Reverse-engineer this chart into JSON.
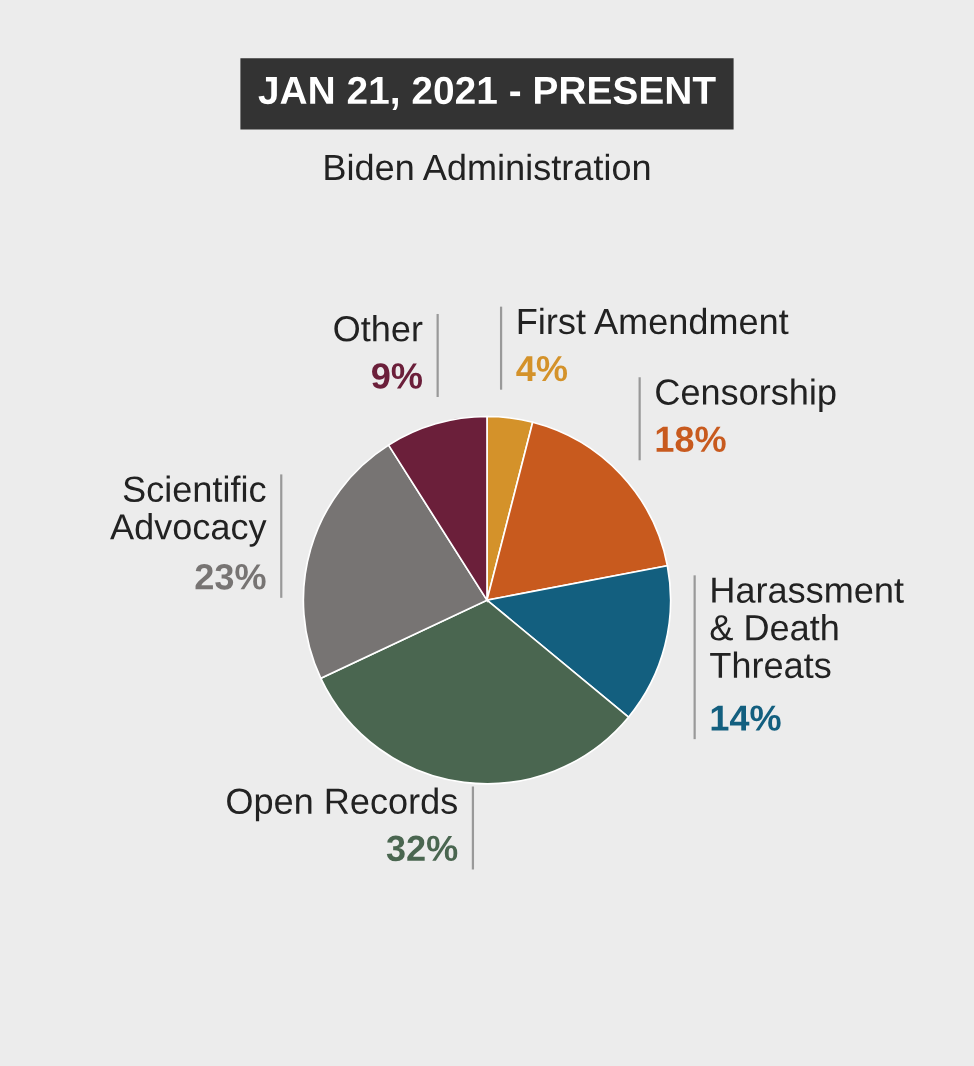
{
  "chart_data": {
    "type": "pie",
    "title": "JAN 21, 2021 - PRESENT",
    "subtitle": "Biden Administration",
    "categories": [
      "First Amendment",
      "Censorship",
      "Harassment\n& Death\nThreats",
      "Open Records",
      "Scientific\nAdvocacy",
      "Other"
    ],
    "values": [
      4,
      18,
      14,
      32,
      23,
      9
    ],
    "value_labels": [
      "4%",
      "18%",
      "14%",
      "32%",
      "23%",
      "9%"
    ],
    "colors": [
      "#d4922a",
      "#c85a1e",
      "#135f7f",
      "#4a6650",
      "#777473",
      "#6b1f3a"
    ]
  }
}
